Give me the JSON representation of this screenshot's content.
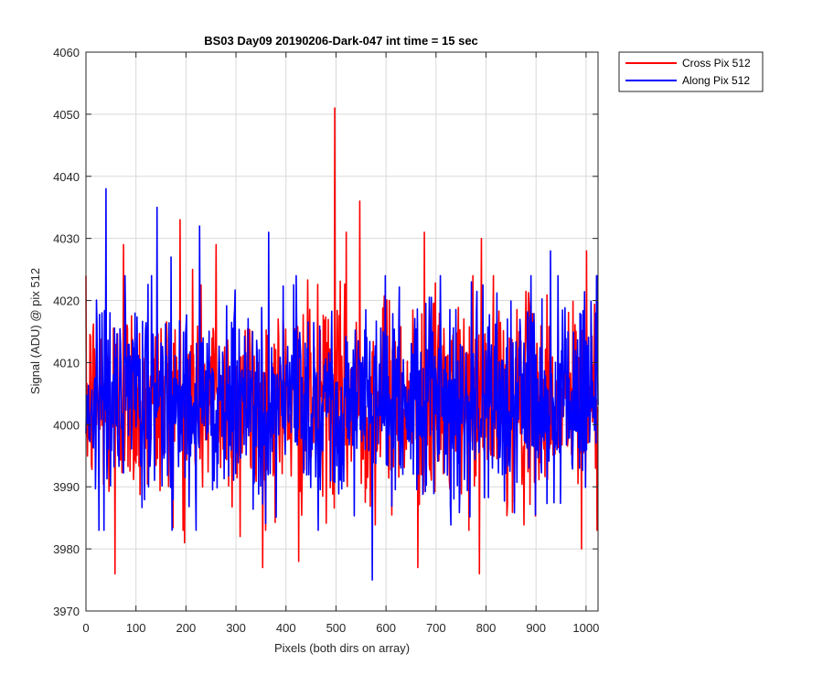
{
  "chart_data": {
    "type": "line",
    "title": "BS03 Day09 20190206-Dark-047 int time = 15 sec",
    "xlabel": "Pixels (both dirs on array)",
    "ylabel": "Signal (ADU) @ pix 512",
    "xlim": [
      0,
      1024
    ],
    "ylim": [
      3970,
      4060
    ],
    "xticks": [
      0,
      100,
      200,
      300,
      400,
      500,
      600,
      700,
      800,
      900,
      1000
    ],
    "yticks": [
      3970,
      3980,
      3990,
      4000,
      4010,
      4020,
      4030,
      4040,
      4050,
      4060
    ],
    "grid": true,
    "legend_position": "outside top-right",
    "noise_baseline": 4004,
    "series": [
      {
        "name": "Cross Pix 512",
        "color": "#ff0000",
        "n_points": 1024,
        "notable_points": [
          {
            "x": 58,
            "y": 3976
          },
          {
            "x": 75,
            "y": 4029
          },
          {
            "x": 188,
            "y": 4033
          },
          {
            "x": 197,
            "y": 3981
          },
          {
            "x": 213,
            "y": 4025
          },
          {
            "x": 260,
            "y": 4029
          },
          {
            "x": 308,
            "y": 3982
          },
          {
            "x": 353,
            "y": 3977
          },
          {
            "x": 425,
            "y": 3978
          },
          {
            "x": 497,
            "y": 4051
          },
          {
            "x": 520,
            "y": 4031
          },
          {
            "x": 547,
            "y": 4036
          },
          {
            "x": 606,
            "y": 4020
          },
          {
            "x": 663,
            "y": 3977
          },
          {
            "x": 676,
            "y": 4031
          },
          {
            "x": 786,
            "y": 3976
          },
          {
            "x": 790,
            "y": 4030
          },
          {
            "x": 990,
            "y": 3980
          },
          {
            "x": 1000,
            "y": 4028
          }
        ]
      },
      {
        "name": "Along Pix 512",
        "color": "#0000ff",
        "n_points": 1024,
        "notable_points": [
          {
            "x": 40,
            "y": 4038
          },
          {
            "x": 142,
            "y": 4035
          },
          {
            "x": 170,
            "y": 4027
          },
          {
            "x": 227,
            "y": 4032
          },
          {
            "x": 365,
            "y": 4031
          },
          {
            "x": 572,
            "y": 3975
          },
          {
            "x": 598,
            "y": 4024
          },
          {
            "x": 770,
            "y": 4023
          },
          {
            "x": 928,
            "y": 4028
          },
          {
            "x": 1020,
            "y": 4024
          }
        ]
      }
    ]
  }
}
